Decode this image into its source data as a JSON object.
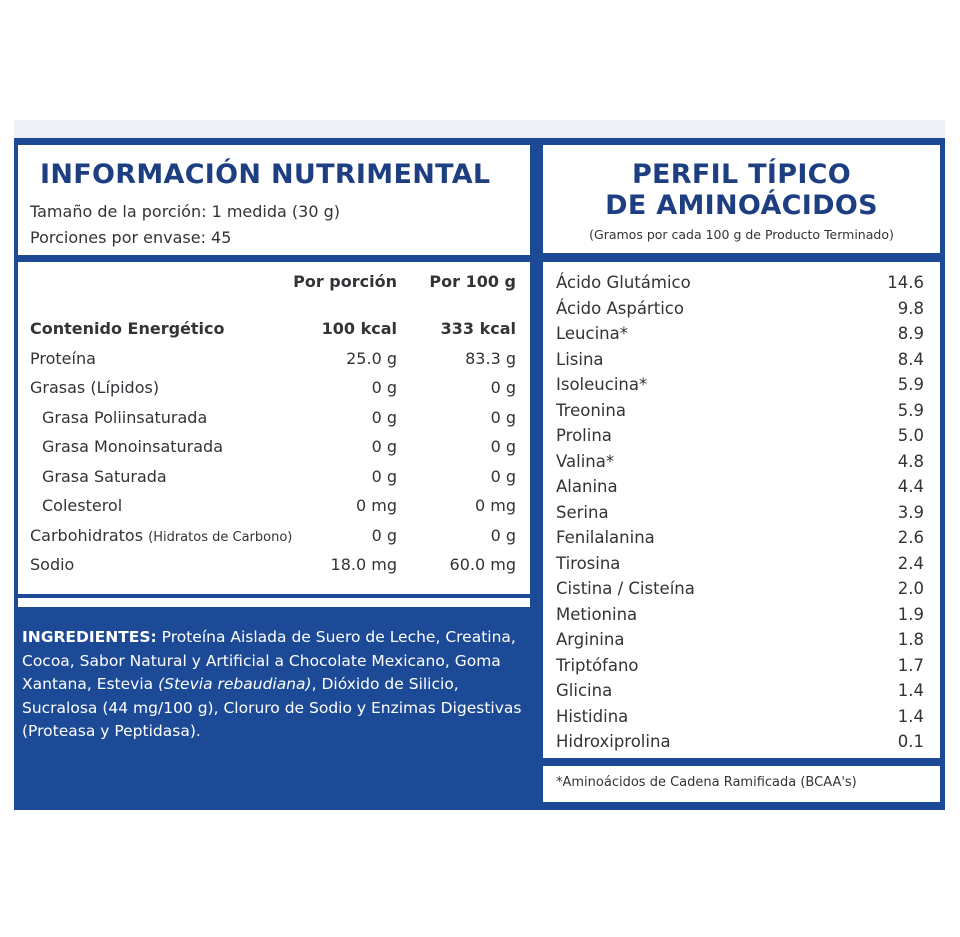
{
  "nutrition": {
    "title": "INFORMACIÓN NUTRIMENTAL",
    "serving_size": "Tamaño de la porción: 1 medida (30 g)",
    "servings_per_container": "Porciones por envase: 45",
    "col_per_serving": "Por porción",
    "col_per_100g": "Por 100 g",
    "rows": [
      {
        "name": "Contenido Energético",
        "per_serving": "100 kcal",
        "per_100g": "333 kcal"
      },
      {
        "name": "Proteína",
        "per_serving": "25.0 g",
        "per_100g": "83.3 g"
      },
      {
        "name": "Grasas (Lípidos)",
        "per_serving": "0 g",
        "per_100g": "0 g"
      },
      {
        "name": "Grasa Poliinsaturada",
        "per_serving": "0 g",
        "per_100g": "0 g"
      },
      {
        "name": "Grasa Monoinsaturada",
        "per_serving": "0 g",
        "per_100g": "0 g"
      },
      {
        "name": "Grasa Saturada",
        "per_serving": "0 g",
        "per_100g": "0 g"
      },
      {
        "name": "Colesterol",
        "per_serving": "0 mg",
        "per_100g": "0 mg"
      },
      {
        "name": "Carbohidratos",
        "name_note": "(Hidratos de Carbono)",
        "per_serving": "0 g",
        "per_100g": "0 g"
      },
      {
        "name": "Sodio",
        "per_serving": "18.0 mg",
        "per_100g": "60.0 mg"
      }
    ]
  },
  "ingredients": {
    "label": "INGREDIENTES:",
    "text_before_italic": " Proteína Aislada de Suero de Leche, Creatina, Cocoa, Sabor Natural y Artificial a Chocolate Mexicano, Goma Xantana, Estevia ",
    "italic": "(Stevia rebaudiana)",
    "text_after_italic": ", Dióxido de Silicio, Sucralosa (44 mg/100 g), Cloruro de Sodio y Enzimas Digestivas (Proteasa y Peptidasa)."
  },
  "amino": {
    "title_line1": "PERFIL TÍPICO",
    "title_line2": "DE AMINOÁCIDOS",
    "note": "(Gramos por cada 100 g de Producto Terminado)",
    "rows": [
      {
        "name": "Ácido Glutámico",
        "value": "14.6"
      },
      {
        "name": "Ácido Aspártico",
        "value": "9.8"
      },
      {
        "name": "Leucina*",
        "value": "8.9"
      },
      {
        "name": "Lisina",
        "value": "8.4"
      },
      {
        "name": "Isoleucina*",
        "value": "5.9"
      },
      {
        "name": "Treonina",
        "value": "5.9"
      },
      {
        "name": "Prolina",
        "value": "5.0"
      },
      {
        "name": "Valina*",
        "value": "4.8"
      },
      {
        "name": "Alanina",
        "value": "4.4"
      },
      {
        "name": "Serina",
        "value": "3.9"
      },
      {
        "name": "Fenilalanina",
        "value": "2.6"
      },
      {
        "name": "Tirosina",
        "value": "2.4"
      },
      {
        "name": "Cistina / Cisteína",
        "value": "2.0"
      },
      {
        "name": "Metionina",
        "value": "1.9"
      },
      {
        "name": "Arginina",
        "value": "1.8"
      },
      {
        "name": "Triptófano",
        "value": "1.7"
      },
      {
        "name": "Glicina",
        "value": "1.4"
      },
      {
        "name": "Histidina",
        "value": "1.4"
      },
      {
        "name": "Hidroxiprolina",
        "value": "0.1"
      }
    ],
    "footnote": "*Aminoácidos de Cadena Ramificada (BCAA's)"
  },
  "colors": {
    "panel": "#1d4a96",
    "title": "#1d3f82",
    "text": "#333338"
  }
}
